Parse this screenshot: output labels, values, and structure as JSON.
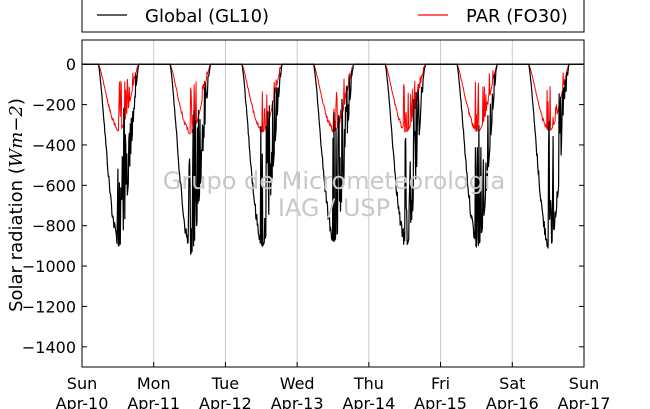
{
  "chart_data": {
    "type": "line",
    "ylabel": "Solar radiation (",
    "ylabel_unit": "Wm−2",
    "ylabel_close": ")",
    "ylim": [
      -1500,
      120
    ],
    "yticks": [
      0,
      -200,
      -400,
      -600,
      -800,
      -1000,
      -1200,
      -1400
    ],
    "ytick_labels": [
      "0",
      "−200",
      "−400",
      "−600",
      "−800",
      "−1000",
      "−1200",
      "−1400"
    ],
    "xlim": [
      0,
      7
    ],
    "x_unit": "days since Sun Apr-10",
    "xticks": [
      {
        "day": "Sun",
        "date": "Apr-10"
      },
      {
        "day": "Mon",
        "date": "Apr-11"
      },
      {
        "day": "Tue",
        "date": "Apr-12"
      },
      {
        "day": "Wed",
        "date": "Apr-13"
      },
      {
        "day": "Thu",
        "date": "Apr-14"
      },
      {
        "day": "Fri",
        "date": "Apr-15"
      },
      {
        "day": "Sat",
        "date": "Apr-16"
      },
      {
        "day": "Sun",
        "date": "Apr-17"
      }
    ],
    "grid": "vertical",
    "legend_position": "top",
    "series": [
      {
        "name": "Global (GL10)",
        "color": "#000000",
        "daily_minimum": [
          -900,
          -940,
          -900,
          -880,
          -905,
          -905,
          -915
        ],
        "noise": 0.55
      },
      {
        "name": "PAR (FO30)",
        "color": "#ff0000",
        "daily_minimum": [
          -330,
          -345,
          -335,
          -335,
          -335,
          -335,
          -330
        ],
        "noise": 0.35
      }
    ],
    "daylight_hours": [
      5.5,
      19.0
    ],
    "watermark_line1": "Grupo de Micrometeorologia",
    "watermark_line2": "IAG / USP"
  }
}
